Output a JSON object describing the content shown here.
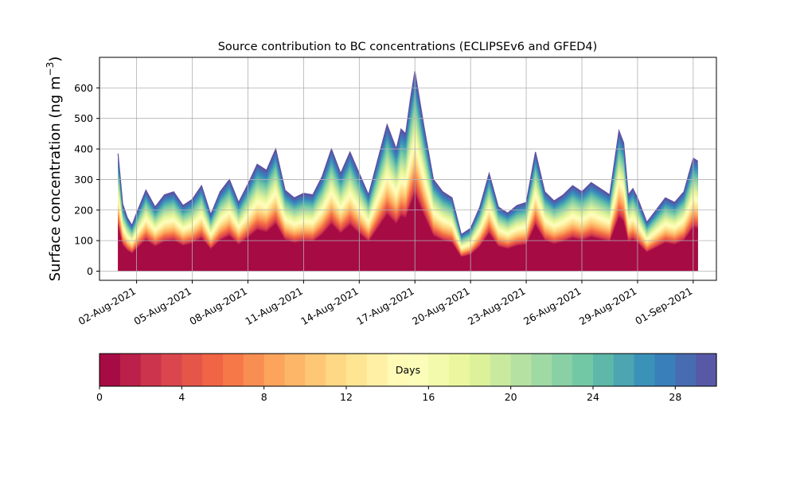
{
  "chart_data": {
    "type": "area",
    "title": "Source contribution to BC concentrations (ECLIPSEv6 and GFED4)",
    "xlabel": "",
    "ylabel_main": "Surface concentration (ng m",
    "ylabel_sup": "−3",
    "ylabel_close": ")",
    "xlim": [
      "2021-07-31T00:00",
      "2021-09-02T06:00"
    ],
    "ylim": [
      -30,
      700
    ],
    "yticks": [
      0,
      100,
      200,
      300,
      400,
      500,
      600
    ],
    "xticks": [
      {
        "date": "2021-08-02",
        "label": "02-Aug-2021"
      },
      {
        "date": "2021-08-05",
        "label": "05-Aug-2021"
      },
      {
        "date": "2021-08-08",
        "label": "08-Aug-2021"
      },
      {
        "date": "2021-08-11",
        "label": "11-Aug-2021"
      },
      {
        "date": "2021-08-14",
        "label": "14-Aug-2021"
      },
      {
        "date": "2021-08-17",
        "label": "17-Aug-2021"
      },
      {
        "date": "2021-08-20",
        "label": "20-Aug-2021"
      },
      {
        "date": "2021-08-23",
        "label": "23-Aug-2021"
      },
      {
        "date": "2021-08-26",
        "label": "26-Aug-2021"
      },
      {
        "date": "2021-08-29",
        "label": "29-Aug-2021"
      },
      {
        "date": "2021-09-01",
        "label": "01-Sep-2021"
      }
    ],
    "grid": true,
    "total_series": {
      "name": "",
      "x": [
        "2021-08-01T00:00",
        "2021-08-01T06:00",
        "2021-08-01T12:00",
        "2021-08-01T18:00",
        "2021-08-02T00:00",
        "2021-08-02T12:00",
        "2021-08-03T00:00",
        "2021-08-03T12:00",
        "2021-08-04T00:00",
        "2021-08-04T12:00",
        "2021-08-05T00:00",
        "2021-08-05T12:00",
        "2021-08-06T00:00",
        "2021-08-06T12:00",
        "2021-08-07T00:00",
        "2021-08-07T12:00",
        "2021-08-08T00:00",
        "2021-08-08T12:00",
        "2021-08-09T00:00",
        "2021-08-09T12:00",
        "2021-08-10T00:00",
        "2021-08-10T12:00",
        "2021-08-11T00:00",
        "2021-08-11T12:00",
        "2021-08-12T00:00",
        "2021-08-12T12:00",
        "2021-08-13T00:00",
        "2021-08-13T12:00",
        "2021-08-14T00:00",
        "2021-08-14T12:00",
        "2021-08-15T00:00",
        "2021-08-15T12:00",
        "2021-08-16T00:00",
        "2021-08-16T06:00",
        "2021-08-16T12:00",
        "2021-08-16T18:00",
        "2021-08-17T00:00",
        "2021-08-17T12:00",
        "2021-08-18T00:00",
        "2021-08-18T12:00",
        "2021-08-19T00:00",
        "2021-08-19T12:00",
        "2021-08-20T00:00",
        "2021-08-20T12:00",
        "2021-08-21T00:00",
        "2021-08-21T12:00",
        "2021-08-22T00:00",
        "2021-08-22T12:00",
        "2021-08-23T00:00",
        "2021-08-23T12:00",
        "2021-08-24T00:00",
        "2021-08-24T12:00",
        "2021-08-25T00:00",
        "2021-08-25T12:00",
        "2021-08-26T00:00",
        "2021-08-26T12:00",
        "2021-08-27T00:00",
        "2021-08-27T12:00",
        "2021-08-28T00:00",
        "2021-08-28T06:00",
        "2021-08-28T12:00",
        "2021-08-28T18:00",
        "2021-08-29T00:00",
        "2021-08-29T12:00",
        "2021-08-30T00:00",
        "2021-08-30T12:00",
        "2021-08-31T00:00",
        "2021-08-31T12:00",
        "2021-09-01T00:00",
        "2021-09-01T06:00"
      ],
      "values": [
        385,
        220,
        175,
        150,
        190,
        265,
        210,
        250,
        260,
        215,
        235,
        280,
        185,
        260,
        300,
        225,
        285,
        350,
        330,
        400,
        265,
        240,
        255,
        250,
        310,
        400,
        320,
        390,
        320,
        250,
        365,
        480,
        400,
        465,
        450,
        560,
        655,
        470,
        300,
        260,
        240,
        120,
        140,
        210,
        320,
        210,
        190,
        215,
        225,
        390,
        260,
        230,
        250,
        280,
        260,
        290,
        270,
        250,
        460,
        420,
        250,
        270,
        240,
        160,
        200,
        240,
        225,
        260,
        370,
        360
      ]
    },
    "stack": {
      "count": 30,
      "description": "stacked contributions by days since emission, 0 (bottom) to 30 (top)",
      "base_fraction": 0.38,
      "colormap": [
        "#9e0142",
        "#d53e4f",
        "#f46d43",
        "#fdae61",
        "#fee08b",
        "#ffffbf",
        "#e6f598",
        "#abdda4",
        "#66c2a5",
        "#3288bd",
        "#5e4fa2"
      ]
    },
    "colorbar": {
      "label": "Days",
      "ticks": [
        0,
        4,
        8,
        12,
        16,
        20,
        24,
        28
      ],
      "min": 0,
      "max": 30,
      "bins": 30
    }
  }
}
